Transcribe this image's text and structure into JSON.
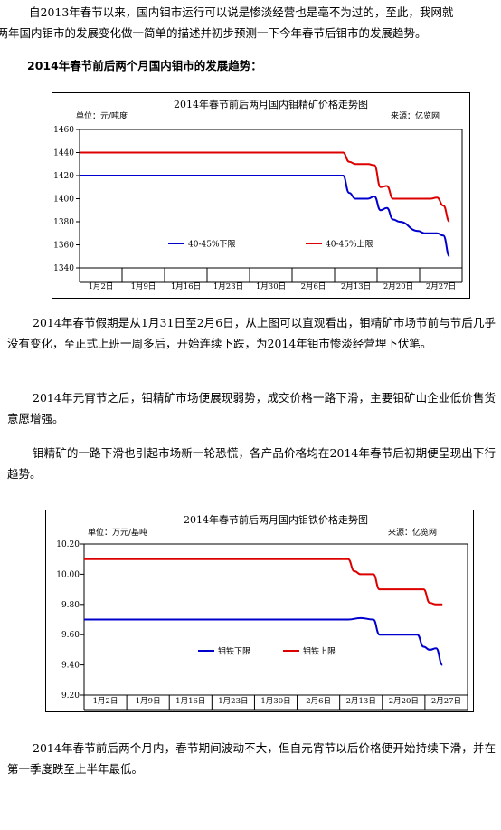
{
  "intro_lines": [
    "自2013年春节以来，国内钼市运行可以说是惨淡经营也是毫不为过的，至此，我网就",
    "近两年国内钼市的发展变化做一简单的描述并初步预测一下今年春节后钼市的发展趋势。"
  ],
  "section_heading": "2014年春节前后两个月国内钼市的发展趋势：",
  "paragraphs": [
    "2014年春节假期是从1月31日至2月6日，从上图可以直观看出，钼精矿市场节前与节后几乎没有变化，至正式上班一周多后，开始连续下跌，为2014年钼市惨淡经营埋下伏笔。",
    "2014年元宵节之后，钼精矿市场便展现弱势，成交价格一路下滑，主要钼矿山企业低价售货意愿增强。",
    "钼精矿的一路下滑也引起市场新一轮恐慌，各产品价格均在2014年春节后初期便呈现出下行趋势。",
    "2014年春节前后两个月内，春节期间波动不大，但自元宵节以后价格便开始持续下滑，并在第一季度跌至上半年最低。"
  ],
  "chart_data": [
    {
      "type": "line",
      "title": "2014年春节前后两月国内钼精矿价格走势图",
      "unit_label": "单位：元/吨度",
      "source_label": "来源：亿览网",
      "x_tick_labels": [
        "1月2日",
        "1月9日",
        "1月16日",
        "1月23日",
        "1月30日",
        "2月6日",
        "2月13日",
        "2月20日",
        "2月27日"
      ],
      "ylim": [
        1340,
        1460
      ],
      "y_ticks": [
        "1340",
        "1360",
        "1380",
        "1400",
        "1420",
        "1440",
        "1460"
      ],
      "legend_position": "center",
      "grid": false,
      "series": [
        {
          "name": "40-45%下限",
          "color": "#0000cc",
          "points": [
            [
              "1-2",
              1420
            ],
            [
              "2-13",
              1420
            ],
            [
              "2-14",
              1405
            ],
            [
              "2-15",
              1400
            ],
            [
              "2-17",
              1400
            ],
            [
              "2-18",
              1402
            ],
            [
              "2-19",
              1390
            ],
            [
              "2-20",
              1392
            ],
            [
              "2-21",
              1382
            ],
            [
              "2-22",
              1380
            ],
            [
              "2-25",
              1372
            ],
            [
              "2-26",
              1370
            ],
            [
              "2-28",
              1370
            ],
            [
              "2-29",
              1368
            ],
            [
              "2-30",
              1350
            ]
          ]
        },
        {
          "name": "40-45%上限",
          "color": "#dd0000",
          "points": [
            [
              "1-2",
              1440
            ],
            [
              "2-13",
              1440
            ],
            [
              "2-14",
              1432
            ],
            [
              "2-15",
              1430
            ],
            [
              "2-17",
              1430
            ],
            [
              "2-18",
              1429
            ],
            [
              "2-19",
              1410
            ],
            [
              "2-20",
              1411
            ],
            [
              "2-21",
              1400
            ],
            [
              "2-27",
              1400
            ],
            [
              "2-28",
              1401
            ],
            [
              "2-29",
              1394
            ],
            [
              "2-30",
              1380
            ]
          ]
        }
      ]
    },
    {
      "type": "line",
      "title": "2014年春节前后两月国内钼铁价格走势图",
      "unit_label": "单位：万元/基吨",
      "source_label": "来源：亿览网",
      "x_tick_labels": [
        "1月2日",
        "1月9日",
        "1月16日",
        "1月23日",
        "1月30日",
        "2月6日",
        "2月13日",
        "2月20日",
        "2月27日"
      ],
      "ylim": [
        9.2,
        10.2
      ],
      "y_ticks": [
        "9.20",
        "9.40",
        "9.60",
        "9.80",
        "10.00",
        "10.20"
      ],
      "legend_position": "center",
      "grid": false,
      "series": [
        {
          "name": "钼铁下限",
          "color": "#0000cc",
          "points": [
            [
              "1-2",
              9.7
            ],
            [
              "2-13",
              9.7
            ],
            [
              "2-15",
              9.71
            ],
            [
              "2-17",
              9.7
            ],
            [
              "2-18",
              9.6
            ],
            [
              "2-24",
              9.6
            ],
            [
              "2-25",
              9.52
            ],
            [
              "2-26",
              9.5
            ],
            [
              "2-27",
              9.51
            ],
            [
              "2-28",
              9.4
            ]
          ]
        },
        {
          "name": "钼铁上限",
          "color": "#dd0000",
          "points": [
            [
              "1-2",
              10.1
            ],
            [
              "2-13",
              10.1
            ],
            [
              "2-14",
              10.02
            ],
            [
              "2-15",
              10.0
            ],
            [
              "2-17",
              10.0
            ],
            [
              "2-18",
              9.9
            ],
            [
              "2-25",
              9.9
            ],
            [
              "2-26",
              9.81
            ],
            [
              "2-27",
              9.8
            ],
            [
              "2-28",
              9.8
            ]
          ]
        }
      ]
    }
  ]
}
